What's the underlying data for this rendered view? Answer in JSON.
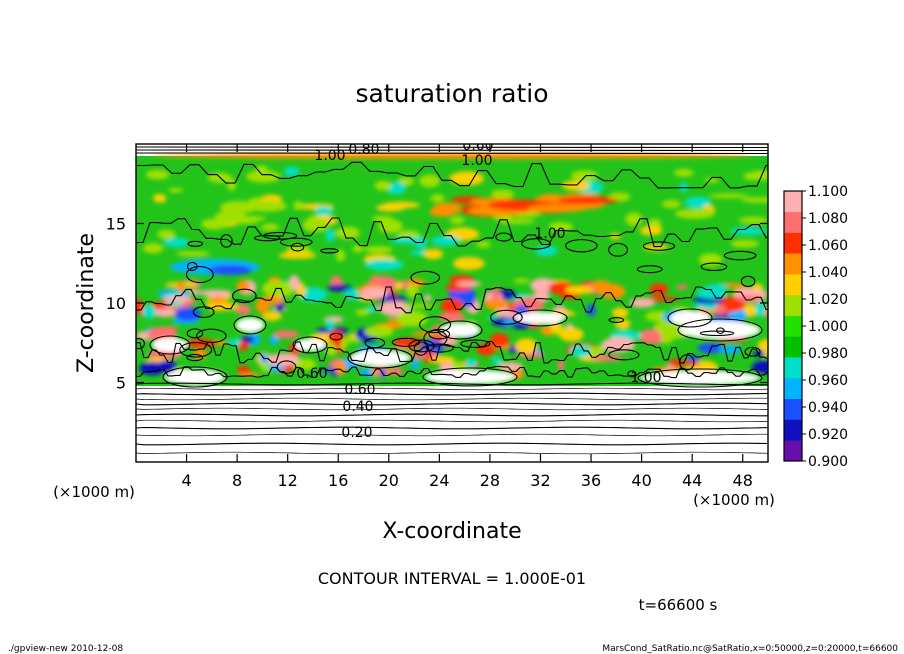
{
  "chart_data": {
    "type": "heatmap",
    "title": "saturation ratio",
    "xlabel": "X-coordinate",
    "ylabel": "Z-coordinate",
    "x_unit": "(×1000 m)",
    "y_unit": "(×1000 m)",
    "xlim": [
      0,
      50
    ],
    "ylim": [
      0,
      20
    ],
    "x_ticks": [
      "4",
      "8",
      "12",
      "16",
      "20",
      "24",
      "28",
      "32",
      "36",
      "40",
      "44",
      "48"
    ],
    "y_ticks": [
      "5",
      "10",
      "15"
    ],
    "colorbar": {
      "range": [
        0.9,
        1.1
      ],
      "ticks": [
        "1.100",
        "1.080",
        "1.060",
        "1.040",
        "1.020",
        "1.000",
        "0.980",
        "0.960",
        "0.940",
        "0.920",
        "0.900"
      ],
      "colors": [
        "#6a0dad",
        "#1010c0",
        "#1a50ff",
        "#00b4ff",
        "#00e0c8",
        "#00c000",
        "#22e000",
        "#a0e000",
        "#ffd000",
        "#ff9000",
        "#ff3000",
        "#ff7070",
        "#ffb0b0"
      ]
    },
    "contour_labels": [
      "0.60",
      "1.00",
      "0.80",
      "1.00",
      "1.00",
      "0.60",
      "0.40",
      "0.20",
      "0.60",
      "1.00"
    ],
    "contour_interval_text": "CONTOUR INTERVAL = 1.000E-01",
    "time_text": "t=66600 s"
  },
  "footer": {
    "left": "./gpview-new  2010-12-08",
    "right": "MarsCond_SatRatio.nc@SatRatio,x=0:50000,z=0:20000,t=66600"
  }
}
